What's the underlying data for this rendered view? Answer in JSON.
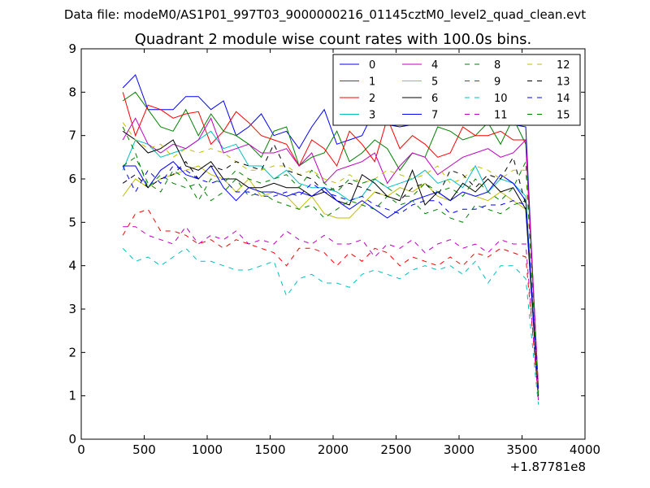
{
  "chart_data": {
    "type": "line",
    "suptitle": "Data file: modeM0/AS1P01_997T03_9000000216_01145cztM0_level2_quad_clean.evt",
    "title": "Quadrant 2 module wise count rates with 100.0s bins.",
    "xlabel": "",
    "ylabel": "",
    "x_offset_label": "+1.87781e8",
    "xlim": [
      0,
      4000
    ],
    "ylim": [
      0,
      9
    ],
    "xticks": [
      "0",
      "500",
      "1000",
      "1500",
      "2000",
      "2500",
      "3000",
      "3500",
      "4000"
    ],
    "yticks": [
      "0",
      "1",
      "2",
      "3",
      "4",
      "5",
      "6",
      "7",
      "8",
      "9"
    ],
    "grid": false,
    "legend": "top-right, 4 columns",
    "x": [
      330,
      430,
      530,
      630,
      730,
      830,
      930,
      1030,
      1130,
      1230,
      1330,
      1430,
      1530,
      1630,
      1730,
      1830,
      1930,
      2030,
      2130,
      2230,
      2330,
      2430,
      2530,
      2630,
      2730,
      2830,
      2930,
      3030,
      3130,
      3230,
      3330,
      3430,
      3530,
      3630
    ],
    "series": [
      {
        "name": "0",
        "color": "#0000ff",
        "dash": "solid",
        "values": [
          8.1,
          8.4,
          7.6,
          7.6,
          7.6,
          7.9,
          7.9,
          7.6,
          7.8,
          7.0,
          7.2,
          7.5,
          7.0,
          7.1,
          6.7,
          7.2,
          7.6,
          6.8,
          6.9,
          7.0,
          7.6,
          7.25,
          7.2,
          7.25,
          7.3,
          7.3,
          7.25,
          7.5,
          7.55,
          7.5,
          7.3,
          7.25,
          7.2,
          1.0
        ]
      },
      {
        "name": "1",
        "color": "#008000",
        "dash": "solid",
        "values": [
          7.8,
          8.0,
          7.6,
          7.2,
          7.1,
          7.6,
          7.0,
          7.5,
          7.1,
          7.0,
          6.8,
          6.5,
          7.1,
          7.2,
          6.3,
          6.5,
          6.6,
          7.1,
          6.4,
          6.6,
          6.9,
          6.7,
          6.2,
          6.6,
          6.5,
          7.2,
          7.1,
          6.9,
          7.0,
          7.3,
          6.8,
          7.4,
          6.8,
          1.1
        ]
      },
      {
        "name": "2",
        "color": "#ff0000",
        "dash": "solid",
        "values": [
          8.0,
          7.0,
          7.7,
          7.6,
          7.4,
          7.5,
          7.55,
          6.8,
          7.1,
          7.55,
          7.3,
          7.0,
          6.9,
          6.8,
          6.3,
          6.9,
          6.7,
          6.3,
          7.1,
          6.8,
          6.4,
          7.4,
          6.7,
          7.0,
          6.8,
          6.5,
          6.6,
          7.2,
          7.0,
          7.0,
          7.1,
          6.9,
          6.9,
          1.2
        ]
      },
      {
        "name": "3",
        "color": "#00bfbf",
        "dash": "solid",
        "values": [
          6.2,
          6.9,
          6.8,
          6.5,
          6.6,
          6.7,
          6.9,
          7.1,
          6.7,
          6.8,
          6.3,
          6.3,
          6.0,
          6.2,
          5.9,
          5.8,
          5.8,
          5.7,
          5.5,
          5.6,
          6.0,
          5.8,
          5.9,
          6.0,
          6.2,
          5.9,
          6.0,
          5.8,
          6.3,
          5.7,
          6.0,
          5.9,
          5.6,
          1.0
        ]
      },
      {
        "name": "4",
        "color": "#bf00bf",
        "dash": "solid",
        "values": [
          6.9,
          7.4,
          6.8,
          6.6,
          6.8,
          6.7,
          6.9,
          7.4,
          6.6,
          6.7,
          6.8,
          6.6,
          6.6,
          6.7,
          6.3,
          6.6,
          5.9,
          6.2,
          6.3,
          6.4,
          6.6,
          5.9,
          6.3,
          6.6,
          6.5,
          6.1,
          6.3,
          6.5,
          6.6,
          6.7,
          6.5,
          6.6,
          6.9,
          1.2
        ]
      },
      {
        "name": "5",
        "color": "#bfbf00",
        "dash": "solid",
        "values": [
          5.6,
          6.0,
          5.8,
          6.0,
          6.1,
          6.2,
          6.3,
          6.1,
          6.0,
          5.7,
          6.0,
          5.6,
          5.7,
          5.6,
          5.3,
          5.6,
          5.2,
          5.1,
          5.1,
          5.4,
          5.7,
          5.6,
          5.8,
          5.7,
          5.9,
          5.6,
          5.5,
          5.7,
          5.6,
          5.5,
          5.7,
          5.5,
          5.3,
          1.1
        ]
      },
      {
        "name": "6",
        "color": "#000000",
        "dash": "solid",
        "values": [
          7.1,
          6.9,
          6.6,
          6.7,
          6.9,
          6.3,
          6.2,
          6.4,
          6.0,
          6.0,
          5.8,
          5.8,
          5.9,
          5.8,
          5.8,
          5.6,
          5.7,
          5.5,
          5.4,
          6.1,
          5.9,
          5.6,
          5.5,
          6.2,
          5.4,
          5.7,
          5.5,
          5.9,
          5.7,
          6.0,
          5.7,
          5.8,
          5.3,
          1.0
        ]
      },
      {
        "name": "7",
        "color": "#0000ff",
        "dash": "solid",
        "values": [
          6.3,
          6.3,
          5.8,
          6.2,
          6.4,
          6.1,
          6.0,
          6.3,
          5.8,
          5.5,
          5.8,
          5.7,
          5.7,
          5.6,
          5.7,
          5.6,
          5.8,
          5.5,
          5.3,
          5.5,
          5.3,
          5.1,
          5.3,
          5.5,
          5.6,
          5.7,
          5.5,
          5.7,
          5.6,
          5.7,
          6.1,
          5.9,
          5.5,
          1.1
        ]
      },
      {
        "name": "8",
        "color": "#008000",
        "dash": "dashed",
        "values": [
          7.2,
          6.6,
          5.8,
          6.1,
          5.9,
          5.8,
          5.9,
          5.5,
          5.7,
          6.0,
          5.6,
          5.7,
          5.5,
          5.4,
          5.3,
          5.4,
          5.1,
          5.3,
          5.5,
          5.4,
          5.3,
          5.6,
          5.4,
          5.5,
          5.2,
          5.3,
          5.1,
          5.0,
          5.4,
          5.3,
          5.2,
          5.4,
          5.5,
          1.0
        ]
      },
      {
        "name": "9",
        "color": "#ff0000",
        "dash": "dashed",
        "values": [
          4.7,
          5.2,
          5.3,
          4.8,
          4.8,
          4.7,
          4.5,
          4.6,
          4.4,
          4.6,
          4.5,
          4.4,
          4.3,
          4.0,
          4.4,
          4.4,
          4.3,
          4.0,
          4.3,
          4.1,
          4.4,
          4.3,
          4.0,
          4.2,
          4.1,
          4.0,
          4.2,
          4.0,
          4.3,
          4.2,
          4.4,
          4.3,
          4.2,
          1.0
        ]
      },
      {
        "name": "10",
        "color": "#00bfbf",
        "dash": "dashed",
        "values": [
          4.4,
          4.1,
          4.2,
          4.0,
          4.2,
          4.4,
          4.1,
          4.1,
          4.0,
          3.9,
          3.9,
          4.0,
          4.1,
          3.3,
          3.7,
          3.8,
          3.6,
          3.6,
          3.5,
          3.8,
          3.9,
          3.8,
          3.7,
          3.9,
          4.0,
          3.9,
          4.0,
          3.8,
          4.1,
          3.6,
          4.0,
          4.0,
          3.7,
          0.8
        ]
      },
      {
        "name": "11",
        "color": "#bf00bf",
        "dash": "dashed",
        "values": [
          4.9,
          4.9,
          4.7,
          4.6,
          4.5,
          4.9,
          4.5,
          4.7,
          4.6,
          4.8,
          4.5,
          4.6,
          4.5,
          4.8,
          4.6,
          4.5,
          4.7,
          4.5,
          4.5,
          4.6,
          4.2,
          4.5,
          4.4,
          4.6,
          4.3,
          4.5,
          4.6,
          4.4,
          4.5,
          4.3,
          4.6,
          4.5,
          4.5,
          0.9
        ]
      },
      {
        "name": "12",
        "color": "#bfbf00",
        "dash": "dashed",
        "values": [
          7.3,
          6.9,
          6.7,
          6.8,
          6.5,
          6.7,
          6.6,
          6.7,
          6.6,
          6.4,
          6.2,
          6.2,
          6.3,
          6.3,
          6.1,
          6.2,
          6.0,
          5.9,
          6.1,
          5.9,
          6.0,
          6.2,
          6.1,
          6.0,
          6.1,
          6.3,
          5.9,
          6.0,
          6.3,
          6.2,
          6.0,
          6.2,
          6.2,
          1.1
        ]
      },
      {
        "name": "13",
        "color": "#000000",
        "dash": "dashed",
        "values": [
          5.9,
          6.1,
          5.8,
          6.0,
          6.1,
          6.4,
          6.0,
          6.3,
          6.2,
          6.4,
          6.3,
          6.2,
          6.8,
          6.2,
          6.1,
          6.0,
          5.7,
          5.8,
          5.9,
          5.8,
          5.7,
          5.6,
          5.5,
          5.8,
          5.9,
          5.6,
          6.2,
          6.1,
          5.8,
          6.1,
          6.0,
          6.5,
          5.4,
          1.0
        ]
      },
      {
        "name": "14",
        "color": "#0000ff",
        "dash": "dashed",
        "values": [
          6.3,
          5.7,
          6.2,
          5.9,
          6.3,
          6.2,
          6.0,
          5.9,
          6.0,
          5.7,
          5.7,
          5.6,
          5.6,
          5.7,
          5.6,
          5.9,
          5.7,
          5.6,
          5.5,
          5.6,
          5.4,
          5.3,
          5.2,
          5.4,
          5.5,
          5.5,
          5.2,
          5.3,
          5.3,
          5.4,
          5.4,
          5.5,
          5.4,
          1.1
        ]
      },
      {
        "name": "15",
        "color": "#008000",
        "dash": "dashed",
        "values": [
          6.3,
          6.5,
          5.9,
          5.7,
          6.2,
          6.0,
          5.5,
          6.0,
          5.9,
          6.2,
          6.0,
          5.9,
          6.0,
          6.1,
          5.8,
          6.2,
          5.9,
          5.7,
          6.0,
          5.9,
          6.0,
          5.8,
          5.6,
          5.6,
          5.9,
          5.7,
          5.8,
          5.6,
          6.0,
          5.7,
          5.5,
          5.8,
          6.4,
          1.0
        ]
      }
    ]
  }
}
